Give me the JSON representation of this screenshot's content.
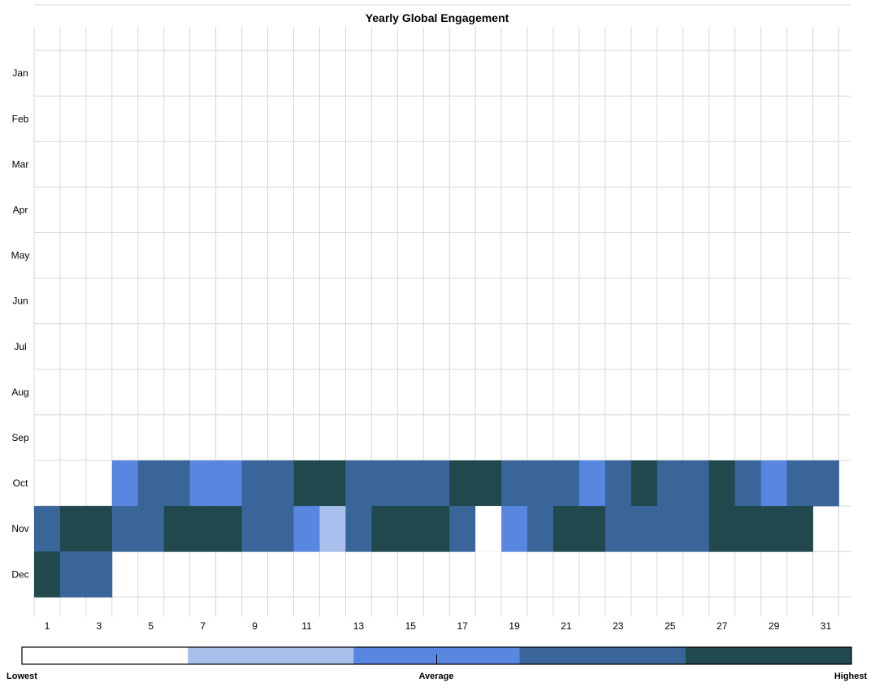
{
  "chart_data": {
    "type": "heatmap",
    "title": "Yearly Global Engagement",
    "rows": [
      "Jan",
      "Feb",
      "Mar",
      "Apr",
      "May",
      "Jun",
      "Jul",
      "Aug",
      "Sep",
      "Oct",
      "Nov",
      "Dec"
    ],
    "columns": [
      1,
      2,
      3,
      4,
      5,
      6,
      7,
      8,
      9,
      10,
      11,
      12,
      13,
      14,
      15,
      16,
      17,
      18,
      19,
      20,
      21,
      22,
      23,
      24,
      25,
      26,
      27,
      28,
      29,
      30,
      31
    ],
    "x_tick_labels": [
      "1",
      "3",
      "5",
      "7",
      "9",
      "11",
      "13",
      "15",
      "17",
      "19",
      "21",
      "23",
      "25",
      "27",
      "29",
      "31"
    ],
    "level_scale": [
      "lowest",
      "low",
      "average",
      "high",
      "highest"
    ],
    "cells": [
      {
        "month": "Oct",
        "days": [
          4
        ],
        "level": 2
      },
      {
        "month": "Oct",
        "days": [
          5,
          6
        ],
        "level": 3
      },
      {
        "month": "Oct",
        "days": [
          7,
          8
        ],
        "level": 2
      },
      {
        "month": "Oct",
        "days": [
          9,
          10
        ],
        "level": 3
      },
      {
        "month": "Oct",
        "days": [
          11,
          12
        ],
        "level": 4
      },
      {
        "month": "Oct",
        "days": [
          13,
          14,
          15,
          16
        ],
        "level": 3
      },
      {
        "month": "Oct",
        "days": [
          17,
          18
        ],
        "level": 4
      },
      {
        "month": "Oct",
        "days": [
          19,
          20,
          21
        ],
        "level": 3
      },
      {
        "month": "Oct",
        "days": [
          22
        ],
        "level": 2
      },
      {
        "month": "Oct",
        "days": [
          23
        ],
        "level": 3
      },
      {
        "month": "Oct",
        "days": [
          24
        ],
        "level": 4
      },
      {
        "month": "Oct",
        "days": [
          25,
          26
        ],
        "level": 3
      },
      {
        "month": "Oct",
        "days": [
          27
        ],
        "level": 4
      },
      {
        "month": "Oct",
        "days": [
          28
        ],
        "level": 3
      },
      {
        "month": "Oct",
        "days": [
          29
        ],
        "level": 2
      },
      {
        "month": "Oct",
        "days": [
          30,
          31
        ],
        "level": 3
      },
      {
        "month": "Nov",
        "days": [
          1
        ],
        "level": 3
      },
      {
        "month": "Nov",
        "days": [
          2,
          3
        ],
        "level": 4
      },
      {
        "month": "Nov",
        "days": [
          4,
          5
        ],
        "level": 3
      },
      {
        "month": "Nov",
        "days": [
          6,
          7,
          8
        ],
        "level": 4
      },
      {
        "month": "Nov",
        "days": [
          9,
          10
        ],
        "level": 3
      },
      {
        "month": "Nov",
        "days": [
          11
        ],
        "level": 2
      },
      {
        "month": "Nov",
        "days": [
          12
        ],
        "level": 1
      },
      {
        "month": "Nov",
        "days": [
          13
        ],
        "level": 3
      },
      {
        "month": "Nov",
        "days": [
          14,
          15,
          16
        ],
        "level": 4
      },
      {
        "month": "Nov",
        "days": [
          17
        ],
        "level": 3
      },
      {
        "month": "Nov",
        "days": [
          18
        ],
        "level": 0
      },
      {
        "month": "Nov",
        "days": [
          19
        ],
        "level": 2
      },
      {
        "month": "Nov",
        "days": [
          20
        ],
        "level": 3
      },
      {
        "month": "Nov",
        "days": [
          21,
          22
        ],
        "level": 4
      },
      {
        "month": "Nov",
        "days": [
          23,
          24,
          25,
          26
        ],
        "level": 3
      },
      {
        "month": "Nov",
        "days": [
          27,
          28,
          29,
          30
        ],
        "level": 4
      },
      {
        "month": "Dec",
        "days": [
          1
        ],
        "level": 4
      },
      {
        "month": "Dec",
        "days": [
          2,
          3
        ],
        "level": 3
      }
    ],
    "colors": [
      "#ffffff",
      "#a8bfec",
      "#5886e0",
      "#3a6599",
      "#21484d"
    ],
    "grid": true,
    "legend": {
      "position": "bottom",
      "low_label": "Lowest",
      "mid_label": "Average",
      "high_label": "Highest"
    }
  }
}
